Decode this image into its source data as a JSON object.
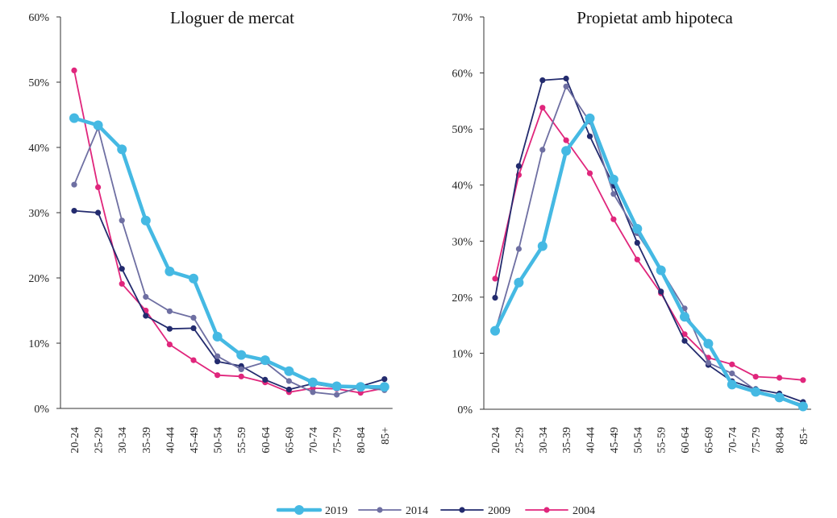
{
  "chart_data": [
    {
      "type": "line",
      "title": "Lloguer de mercat",
      "categories": [
        "20-24",
        "25-29",
        "30-34",
        "35-39",
        "40-44",
        "45-49",
        "50-54",
        "55-59",
        "60-64",
        "65-69",
        "70-74",
        "75-79",
        "80-84",
        "85+"
      ],
      "ylim": [
        0,
        60
      ],
      "yticks": [
        0,
        10,
        20,
        30,
        40,
        50,
        60
      ],
      "ytick_labels": [
        "0%",
        "10%",
        "20%",
        "30%",
        "40%",
        "50%",
        "60%"
      ],
      "series": [
        {
          "name": "2019",
          "values": [
            44.5,
            43.4,
            39.7,
            28.8,
            21.0,
            19.9,
            11.0,
            8.2,
            7.4,
            5.7,
            4.0,
            3.4,
            3.3,
            3.3
          ]
        },
        {
          "name": "2014",
          "values": [
            34.3,
            43.0,
            28.8,
            17.1,
            14.9,
            13.9,
            8.0,
            6.0,
            7.1,
            4.2,
            2.5,
            2.1,
            3.3,
            2.8
          ]
        },
        {
          "name": "2009",
          "values": [
            30.3,
            30.0,
            21.4,
            14.2,
            12.2,
            12.3,
            7.2,
            6.5,
            4.4,
            2.9,
            3.8,
            3.2,
            3.4,
            4.5
          ]
        },
        {
          "name": "2004",
          "values": [
            51.8,
            33.9,
            19.1,
            15.0,
            9.8,
            7.4,
            5.1,
            4.9,
            4.0,
            2.5,
            3.1,
            3.0,
            2.4,
            3.1
          ]
        }
      ]
    },
    {
      "type": "line",
      "title": "Propietat amb hipoteca",
      "categories": [
        "20-24",
        "25-29",
        "30-34",
        "35-39",
        "40-44",
        "45-49",
        "50-54",
        "55-59",
        "60-64",
        "65-69",
        "70-74",
        "75-79",
        "80-84",
        "85+"
      ],
      "ylim": [
        0,
        70
      ],
      "yticks": [
        0,
        10,
        20,
        30,
        40,
        50,
        60,
        70
      ],
      "ytick_labels": [
        "0%",
        "10%",
        "20%",
        "30%",
        "40%",
        "50%",
        "60%",
        "70%"
      ],
      "series": [
        {
          "name": "2019",
          "values": [
            14.0,
            22.6,
            29.1,
            46.1,
            51.9,
            41.0,
            32.2,
            24.8,
            16.5,
            11.7,
            4.4,
            3.1,
            2.1,
            0.5
          ]
        },
        {
          "name": "2014",
          "values": [
            13.8,
            28.6,
            46.3,
            57.6,
            51.3,
            38.4,
            31.4,
            24.9,
            18.0,
            8.3,
            6.4,
            3.4,
            2.1,
            0.8
          ]
        },
        {
          "name": "2009",
          "values": [
            19.9,
            43.4,
            58.7,
            59.0,
            48.7,
            39.9,
            29.7,
            21.0,
            12.2,
            7.9,
            5.0,
            3.6,
            2.8,
            1.3
          ]
        },
        {
          "name": "2004",
          "values": [
            23.3,
            41.8,
            53.8,
            48.0,
            42.1,
            33.9,
            26.7,
            20.7,
            13.4,
            9.2,
            8.0,
            5.8,
            5.6,
            5.2
          ]
        }
      ]
    }
  ],
  "legend": {
    "placement": "bottom-center",
    "items": [
      {
        "label": "2019",
        "color": "#45b9e3",
        "style": "thick"
      },
      {
        "label": "2014",
        "color": "#6e6fa2",
        "style": "thin"
      },
      {
        "label": "2009",
        "color": "#232b6e",
        "style": "thin"
      },
      {
        "label": "2004",
        "color": "#e0267c",
        "style": "thin"
      }
    ]
  }
}
